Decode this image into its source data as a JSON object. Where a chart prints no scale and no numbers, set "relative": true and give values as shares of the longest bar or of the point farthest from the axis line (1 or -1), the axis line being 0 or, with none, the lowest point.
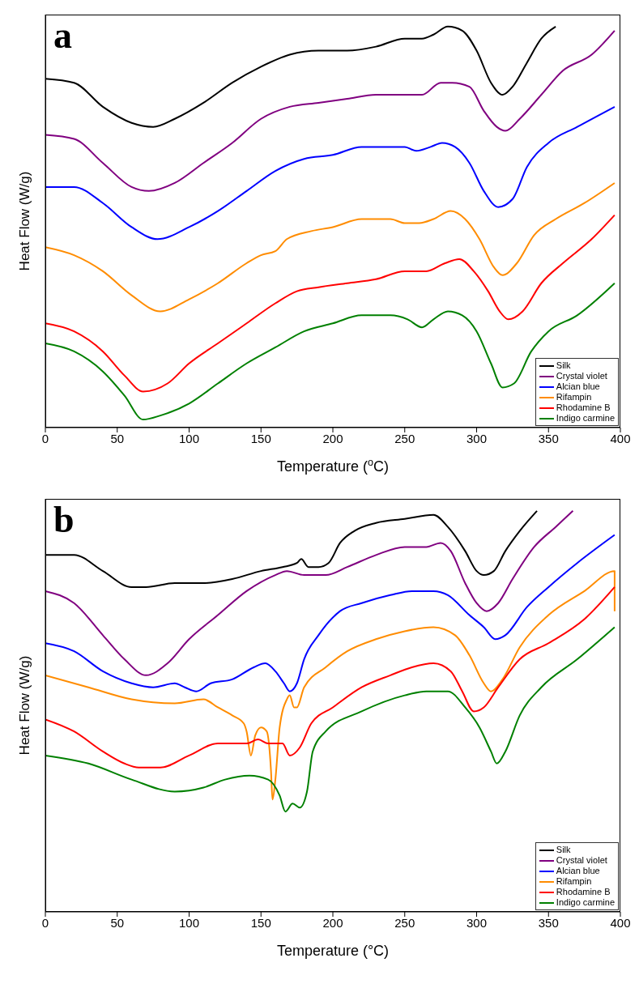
{
  "chart_data": [
    {
      "type": "line",
      "title": "a",
      "xlabel": "Temperature ($^{o}$C)",
      "ylabel": "Heat Flow (W/g)",
      "relative": true,
      "xlim": [
        0,
        400
      ],
      "xticks": [
        0,
        50,
        100,
        150,
        200,
        250,
        300,
        350,
        400
      ],
      "legend": "bottom right",
      "marker": "none",
      "line_style": "solid",
      "series": [
        {
          "name": "Silk",
          "color": "#000000",
          "x": [
            0,
            20,
            40,
            60,
            75,
            90,
            110,
            130,
            150,
            170,
            190,
            210,
            230,
            250,
            262,
            270,
            280,
            290,
            300,
            310,
            318,
            325,
            335,
            345,
            355
          ],
          "values": [
            0.87,
            0.86,
            0.8,
            0.76,
            0.75,
            0.77,
            0.81,
            0.86,
            0.9,
            0.93,
            0.94,
            0.94,
            0.95,
            0.97,
            0.97,
            0.98,
            1.0,
            0.99,
            0.94,
            0.86,
            0.83,
            0.85,
            0.91,
            0.97,
            1.0
          ]
        },
        {
          "name": "Crystal violet",
          "color": "#800080",
          "x": [
            0,
            20,
            40,
            60,
            72,
            90,
            110,
            130,
            150,
            170,
            190,
            210,
            230,
            250,
            262,
            275,
            283,
            295,
            305,
            314,
            320,
            330,
            345,
            360,
            380,
            396
          ],
          "values": [
            0.73,
            0.72,
            0.66,
            0.6,
            0.59,
            0.61,
            0.66,
            0.71,
            0.77,
            0.8,
            0.81,
            0.82,
            0.83,
            0.83,
            0.83,
            0.86,
            0.86,
            0.85,
            0.79,
            0.75,
            0.74,
            0.77,
            0.83,
            0.89,
            0.93,
            0.99
          ]
        },
        {
          "name": "Alcian blue",
          "color": "#0000ff",
          "x": [
            0,
            20,
            40,
            60,
            78,
            100,
            120,
            140,
            160,
            180,
            200,
            220,
            240,
            250,
            258,
            268,
            276,
            285,
            295,
            305,
            315,
            325,
            335,
            350,
            370,
            396
          ],
          "values": [
            0.6,
            0.6,
            0.56,
            0.5,
            0.47,
            0.5,
            0.54,
            0.59,
            0.64,
            0.67,
            0.68,
            0.7,
            0.7,
            0.7,
            0.69,
            0.7,
            0.71,
            0.7,
            0.66,
            0.59,
            0.55,
            0.57,
            0.65,
            0.71,
            0.75,
            0.8
          ]
        },
        {
          "name": "Rifampin",
          "color": "#ff8c00",
          "x": [
            0,
            20,
            40,
            60,
            80,
            100,
            120,
            140,
            150,
            160,
            168,
            185,
            200,
            220,
            240,
            250,
            260,
            270,
            282,
            292,
            302,
            312,
            318,
            328,
            340,
            355,
            375,
            396
          ],
          "values": [
            0.45,
            0.43,
            0.39,
            0.33,
            0.29,
            0.32,
            0.36,
            0.41,
            0.43,
            0.44,
            0.47,
            0.49,
            0.5,
            0.52,
            0.52,
            0.51,
            0.51,
            0.52,
            0.54,
            0.52,
            0.47,
            0.4,
            0.38,
            0.41,
            0.48,
            0.52,
            0.56,
            0.61
          ]
        },
        {
          "name": "Rhodamine B",
          "color": "#ff0000",
          "x": [
            0,
            20,
            40,
            55,
            68,
            85,
            100,
            120,
            140,
            160,
            175,
            190,
            210,
            230,
            250,
            265,
            278,
            288,
            298,
            308,
            316,
            322,
            332,
            345,
            360,
            380,
            396
          ],
          "values": [
            0.26,
            0.24,
            0.19,
            0.13,
            0.09,
            0.11,
            0.16,
            0.21,
            0.26,
            0.31,
            0.34,
            0.35,
            0.36,
            0.37,
            0.39,
            0.39,
            0.41,
            0.42,
            0.39,
            0.34,
            0.29,
            0.27,
            0.29,
            0.36,
            0.41,
            0.47,
            0.53
          ]
        },
        {
          "name": "Indigo carmine",
          "color": "#008000",
          "x": [
            0,
            20,
            40,
            55,
            68,
            80,
            100,
            120,
            140,
            160,
            180,
            200,
            220,
            240,
            252,
            262,
            270,
            280,
            290,
            300,
            310,
            318,
            326,
            338,
            350,
            370,
            396
          ],
          "values": [
            0.21,
            0.19,
            0.14,
            0.08,
            0.02,
            0.03,
            0.06,
            0.11,
            0.16,
            0.2,
            0.24,
            0.26,
            0.28,
            0.28,
            0.27,
            0.25,
            0.27,
            0.29,
            0.28,
            0.24,
            0.16,
            0.1,
            0.11,
            0.19,
            0.24,
            0.28,
            0.36
          ]
        }
      ]
    },
    {
      "type": "line",
      "title": "b",
      "xlabel": "Temperature (°C)",
      "ylabel": "Heat Flow (W/g)",
      "relative": true,
      "xlim": [
        0,
        400
      ],
      "xticks": [
        0,
        50,
        100,
        150,
        200,
        250,
        300,
        350,
        400
      ],
      "legend": "bottom right",
      "marker": "none",
      "line_style": "solid",
      "series": [
        {
          "name": "Silk",
          "color": "#000000",
          "x": [
            0,
            20,
            40,
            60,
            70,
            90,
            110,
            130,
            150,
            165,
            175,
            178,
            183,
            190,
            197,
            205,
            215,
            230,
            250,
            270,
            280,
            292,
            300,
            305,
            312,
            320,
            330,
            342
          ],
          "values": [
            0.89,
            0.89,
            0.85,
            0.81,
            0.81,
            0.82,
            0.82,
            0.83,
            0.85,
            0.86,
            0.87,
            0.88,
            0.86,
            0.86,
            0.87,
            0.92,
            0.95,
            0.97,
            0.98,
            0.99,
            0.96,
            0.9,
            0.85,
            0.84,
            0.85,
            0.9,
            0.95,
            1.0
          ]
        },
        {
          "name": "Crystal violet",
          "color": "#800080",
          "x": [
            0,
            20,
            40,
            55,
            70,
            85,
            100,
            120,
            140,
            160,
            168,
            180,
            195,
            210,
            230,
            250,
            265,
            275,
            282,
            292,
            300,
            307,
            315,
            325,
            340,
            355,
            367
          ],
          "values": [
            0.8,
            0.77,
            0.69,
            0.63,
            0.59,
            0.62,
            0.68,
            0.74,
            0.8,
            0.84,
            0.85,
            0.84,
            0.84,
            0.86,
            0.89,
            0.91,
            0.91,
            0.92,
            0.9,
            0.82,
            0.77,
            0.75,
            0.77,
            0.83,
            0.91,
            0.96,
            1.0
          ]
        },
        {
          "name": "Alcian blue",
          "color": "#0000ff",
          "x": [
            0,
            20,
            40,
            60,
            75,
            90,
            97,
            105,
            115,
            130,
            145,
            153,
            160,
            166,
            170,
            175,
            180,
            190,
            205,
            220,
            240,
            255,
            270,
            280,
            295,
            305,
            313,
            320,
            335,
            350,
            370,
            396
          ],
          "values": [
            0.67,
            0.65,
            0.6,
            0.57,
            0.56,
            0.57,
            0.56,
            0.55,
            0.57,
            0.58,
            0.61,
            0.62,
            0.6,
            0.57,
            0.55,
            0.57,
            0.63,
            0.69,
            0.75,
            0.77,
            0.79,
            0.8,
            0.8,
            0.79,
            0.74,
            0.71,
            0.68,
            0.69,
            0.76,
            0.81,
            0.87,
            0.94
          ]
        },
        {
          "name": "Rifampin",
          "color": "#ff8c00",
          "x": [
            0,
            30,
            60,
            90,
            110,
            120,
            130,
            138,
            140,
            143,
            146,
            150,
            154,
            157,
            158,
            160,
            163,
            168,
            170,
            173,
            175,
            180,
            195,
            210,
            230,
            250,
            270,
            285,
            295,
            305,
            310,
            318,
            330,
            350,
            375,
            396,
            396
          ],
          "values": [
            0.59,
            0.56,
            0.53,
            0.52,
            0.53,
            0.51,
            0.49,
            0.47,
            0.45,
            0.39,
            0.44,
            0.46,
            0.45,
            0.35,
            0.28,
            0.33,
            0.46,
            0.53,
            0.54,
            0.51,
            0.51,
            0.56,
            0.61,
            0.65,
            0.68,
            0.7,
            0.71,
            0.69,
            0.64,
            0.57,
            0.55,
            0.58,
            0.66,
            0.74,
            0.8,
            0.85,
            0.75
          ]
        },
        {
          "name": "Rhodamine B",
          "color": "#ff0000",
          "x": [
            0,
            20,
            40,
            55,
            65,
            80,
            100,
            120,
            130,
            140,
            148,
            155,
            165,
            170,
            177,
            185,
            200,
            220,
            240,
            255,
            270,
            282,
            290,
            298,
            305,
            315,
            330,
            350,
            375,
            396
          ],
          "values": [
            0.48,
            0.45,
            0.4,
            0.37,
            0.36,
            0.36,
            0.39,
            0.42,
            0.42,
            0.42,
            0.43,
            0.42,
            0.42,
            0.39,
            0.41,
            0.47,
            0.51,
            0.56,
            0.59,
            0.61,
            0.62,
            0.6,
            0.55,
            0.5,
            0.51,
            0.56,
            0.63,
            0.67,
            0.73,
            0.81
          ]
        },
        {
          "name": "Indigo carmine",
          "color": "#008000",
          "x": [
            0,
            30,
            60,
            90,
            110,
            125,
            142,
            155,
            163,
            167,
            172,
            177,
            182,
            186,
            195,
            220,
            250,
            265,
            280,
            292,
            302,
            310,
            314,
            320,
            330,
            345,
            370,
            396
          ],
          "values": [
            0.39,
            0.37,
            0.33,
            0.3,
            0.31,
            0.33,
            0.34,
            0.33,
            0.29,
            0.25,
            0.27,
            0.26,
            0.3,
            0.4,
            0.45,
            0.5,
            0.54,
            0.55,
            0.55,
            0.51,
            0.46,
            0.4,
            0.37,
            0.4,
            0.49,
            0.56,
            0.63,
            0.71
          ]
        }
      ]
    }
  ]
}
